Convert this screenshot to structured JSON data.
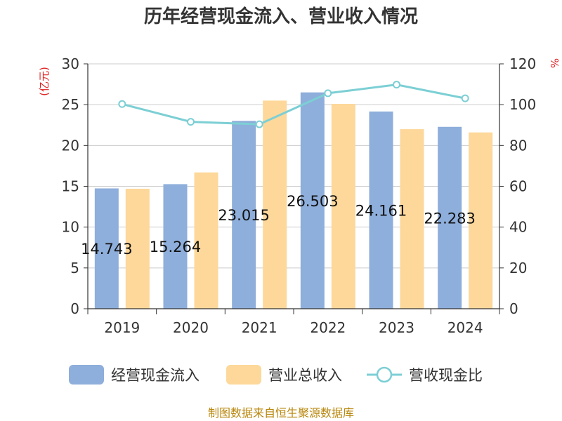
{
  "title": "历年经营现金流入、营业收入情况",
  "source": "制图数据来自恒生聚源数据库",
  "colors": {
    "cash_inflow": "#8eaedb",
    "revenue": "#fdd89a",
    "ratio_line": "#7ccfd4",
    "axis": "#333333",
    "grid": "#cccccc",
    "unit": "#e02020"
  },
  "chart_data": {
    "type": "bar+line",
    "title": "历年经营现金流入、营业收入情况",
    "categories": [
      "2019",
      "2020",
      "2021",
      "2022",
      "2023",
      "2024"
    ],
    "y_left": {
      "label": "(亿元)",
      "min": 0,
      "max": 30,
      "ticks": [
        "0",
        "5",
        "10",
        "15",
        "20",
        "25",
        "30"
      ]
    },
    "y_right": {
      "label": "%",
      "min": 0,
      "max": 120,
      "ticks": [
        "0",
        "20",
        "40",
        "60",
        "80",
        "100",
        "120"
      ]
    },
    "series": [
      {
        "name": "经营现金流入",
        "type": "bar",
        "axis": "left",
        "values": [
          14.743,
          15.264,
          23.015,
          26.503,
          24.161,
          22.283
        ],
        "labels": [
          "14.743",
          "15.264",
          "23.015",
          "26.503",
          "24.161",
          "22.283"
        ]
      },
      {
        "name": "营业总收入",
        "type": "bar",
        "axis": "left",
        "values": [
          14.7,
          16.7,
          25.5,
          25.1,
          22.0,
          21.6
        ]
      },
      {
        "name": "营收现金比",
        "type": "line",
        "axis": "right",
        "values": [
          100.3,
          91.6,
          90.4,
          105.6,
          109.8,
          103.1
        ]
      }
    ],
    "legend": [
      "经营现金流入",
      "营业总收入",
      "营收现金比"
    ]
  }
}
